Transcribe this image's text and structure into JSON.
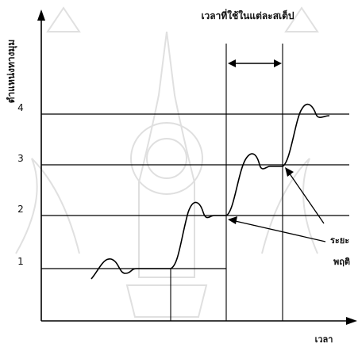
{
  "diagram": {
    "title": "เวลาที่ใช้ในแต่ละสเต็ป",
    "y_axis_label": "ตำแหน่งทางมุม",
    "x_axis_label": "เวลา",
    "levels": [
      "1",
      "2",
      "3",
      "4"
    ],
    "side_label_line1": "ระยะ",
    "side_label_line2": "พฤติ"
  }
}
